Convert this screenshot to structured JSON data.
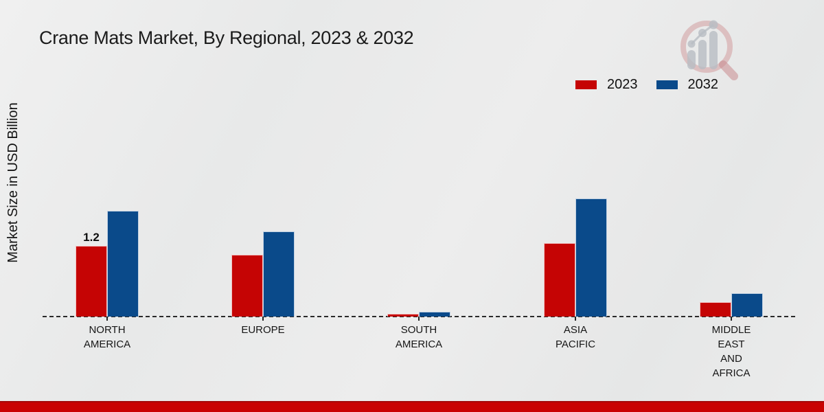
{
  "title": "Crane Mats Market, By Regional, 2023 & 2032",
  "ylabel": "Market Size in USD Billion",
  "colors": {
    "series_2023": "#c50404",
    "series_2032": "#0a4a8a",
    "footer_band": "#c90202",
    "background": "#eaebeb",
    "text": "#161616"
  },
  "chart_data": {
    "type": "bar",
    "title": "Crane Mats Market, By Regional, 2023 & 2032",
    "xlabel": "",
    "ylabel": "Market Size in USD Billion",
    "categories": [
      "NORTH AMERICA",
      "EUROPE",
      "SOUTH AMERICA",
      "ASIA PACIFIC",
      "MIDDLE EAST AND AFRICA"
    ],
    "category_lines": [
      [
        "NORTH",
        "AMERICA"
      ],
      [
        "EUROPE"
      ],
      [
        "SOUTH",
        "AMERICA"
      ],
      [
        "ASIA",
        "PACIFIC"
      ],
      [
        "MIDDLE",
        "EAST",
        "AND",
        "AFRICA"
      ]
    ],
    "series": [
      {
        "name": "2023",
        "color": "#c50404",
        "values": [
          1.2,
          1.05,
          0.05,
          1.25,
          0.25
        ]
      },
      {
        "name": "2032",
        "color": "#0a4a8a",
        "values": [
          1.8,
          1.45,
          0.08,
          2.0,
          0.4
        ]
      }
    ],
    "annotations": [
      {
        "category_index": 0,
        "series_index": 0,
        "text": "1.2",
        "value": 1.2
      }
    ],
    "ylim": [
      0,
      2.2
    ],
    "grid": false,
    "legend_position": "top-right",
    "baseline_style": "dashed",
    "y_axis_visible": false
  },
  "watermark": {
    "name": "market-research-logo"
  }
}
